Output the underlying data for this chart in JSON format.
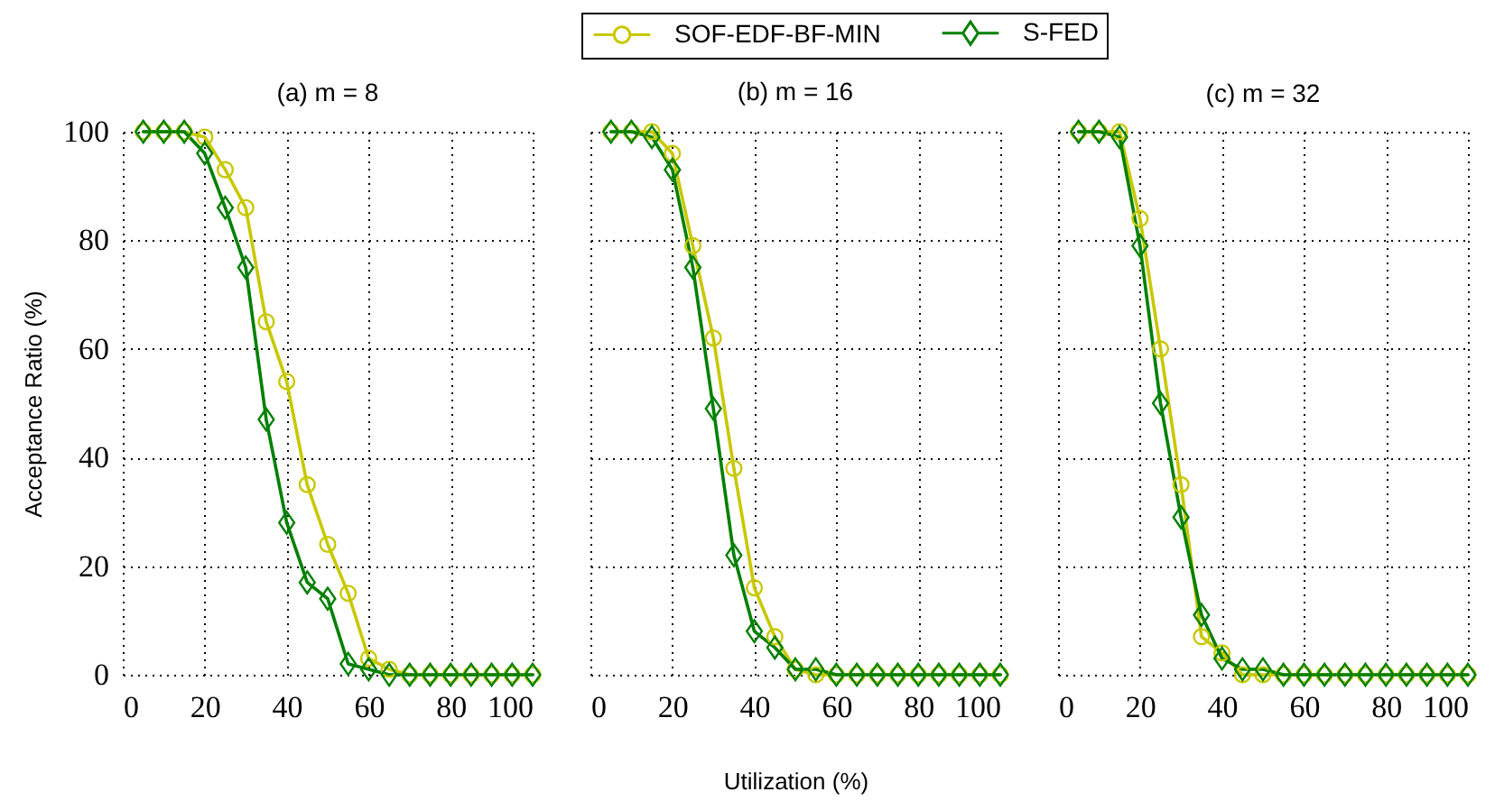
{
  "chart_data": [
    {
      "type": "line",
      "title": "(a) m = 8",
      "ylabel": "Acceptance Ratio (%)",
      "x": [
        5,
        10,
        15,
        20,
        25,
        30,
        35,
        40,
        45,
        50,
        55,
        60,
        65,
        70,
        75,
        80,
        85,
        90,
        95,
        100
      ],
      "series": [
        {
          "color": "#c8c800",
          "marker": "circle",
          "values": [
            100,
            100,
            100,
            99,
            93,
            86,
            65,
            54,
            35,
            24,
            15,
            3,
            1,
            0,
            0,
            0,
            0,
            0,
            0,
            0
          ]
        },
        {
          "color": "#008000",
          "marker": "diamond",
          "values": [
            100,
            100,
            100,
            96,
            86,
            75,
            47,
            28,
            17,
            14,
            2,
            1,
            0,
            0,
            0,
            0,
            0,
            0,
            0,
            0
          ]
        }
      ],
      "xlim": [
        0,
        100
      ],
      "ylim": [
        0,
        100
      ],
      "xticks": [
        0,
        20,
        40,
        60,
        80,
        100
      ],
      "yticks": [
        0,
        20,
        40,
        60,
        80,
        100
      ],
      "grid": true,
      "line_style": "solid"
    },
    {
      "type": "line",
      "title": "(b) m = 16",
      "xlabel": "Utilization (%)",
      "x": [
        5,
        10,
        15,
        20,
        25,
        30,
        35,
        40,
        45,
        50,
        55,
        60,
        65,
        70,
        75,
        80,
        85,
        90,
        95,
        100
      ],
      "series": [
        {
          "name": "SOF-EDF-BF-MIN",
          "color": "#c8c800",
          "marker": "circle",
          "values": [
            100,
            100,
            100,
            96,
            79,
            62,
            38,
            16,
            7,
            1,
            0,
            0,
            0,
            0,
            0,
            0,
            0,
            0,
            0,
            0
          ]
        },
        {
          "name": "S-FED",
          "color": "#008000",
          "marker": "diamond",
          "values": [
            100,
            100,
            99,
            93,
            75,
            49,
            22,
            8,
            5,
            1,
            1,
            0,
            0,
            0,
            0,
            0,
            0,
            0,
            0,
            0
          ]
        }
      ],
      "xlim": [
        0,
        100
      ],
      "ylim": [
        0,
        100
      ],
      "xticks": [
        0,
        20,
        40,
        60,
        80,
        100
      ],
      "yticks": [
        0,
        20,
        40,
        60,
        80,
        100
      ],
      "grid": true,
      "line_style": "solid",
      "legend": "top",
      "tick_labels": "x"
    },
    {
      "type": "line",
      "title": "(c) m = 32",
      "x": [
        5,
        10,
        15,
        20,
        25,
        30,
        35,
        40,
        45,
        50,
        55,
        60,
        65,
        70,
        75,
        80,
        85,
        90,
        95,
        100
      ],
      "series": [
        {
          "color": "#c8c800",
          "marker": "circle",
          "values": [
            100,
            100,
            100,
            84,
            60,
            35,
            7,
            4,
            0,
            0,
            0,
            0,
            0,
            0,
            0,
            0,
            0,
            0,
            0,
            0
          ]
        },
        {
          "color": "#008000",
          "marker": "diamond",
          "values": [
            100,
            100,
            99,
            79,
            50,
            29,
            11,
            3,
            1,
            1,
            0,
            0,
            0,
            0,
            0,
            0,
            0,
            0,
            0,
            0
          ]
        }
      ],
      "xlim": [
        0,
        100
      ],
      "ylim": [
        0,
        100
      ],
      "xticks": [
        0,
        20,
        40,
        60,
        80,
        100
      ],
      "yticks": [
        0,
        20,
        40,
        60,
        80,
        100
      ],
      "grid": true,
      "line_style": "solid",
      "tick_labels": "x"
    }
  ]
}
